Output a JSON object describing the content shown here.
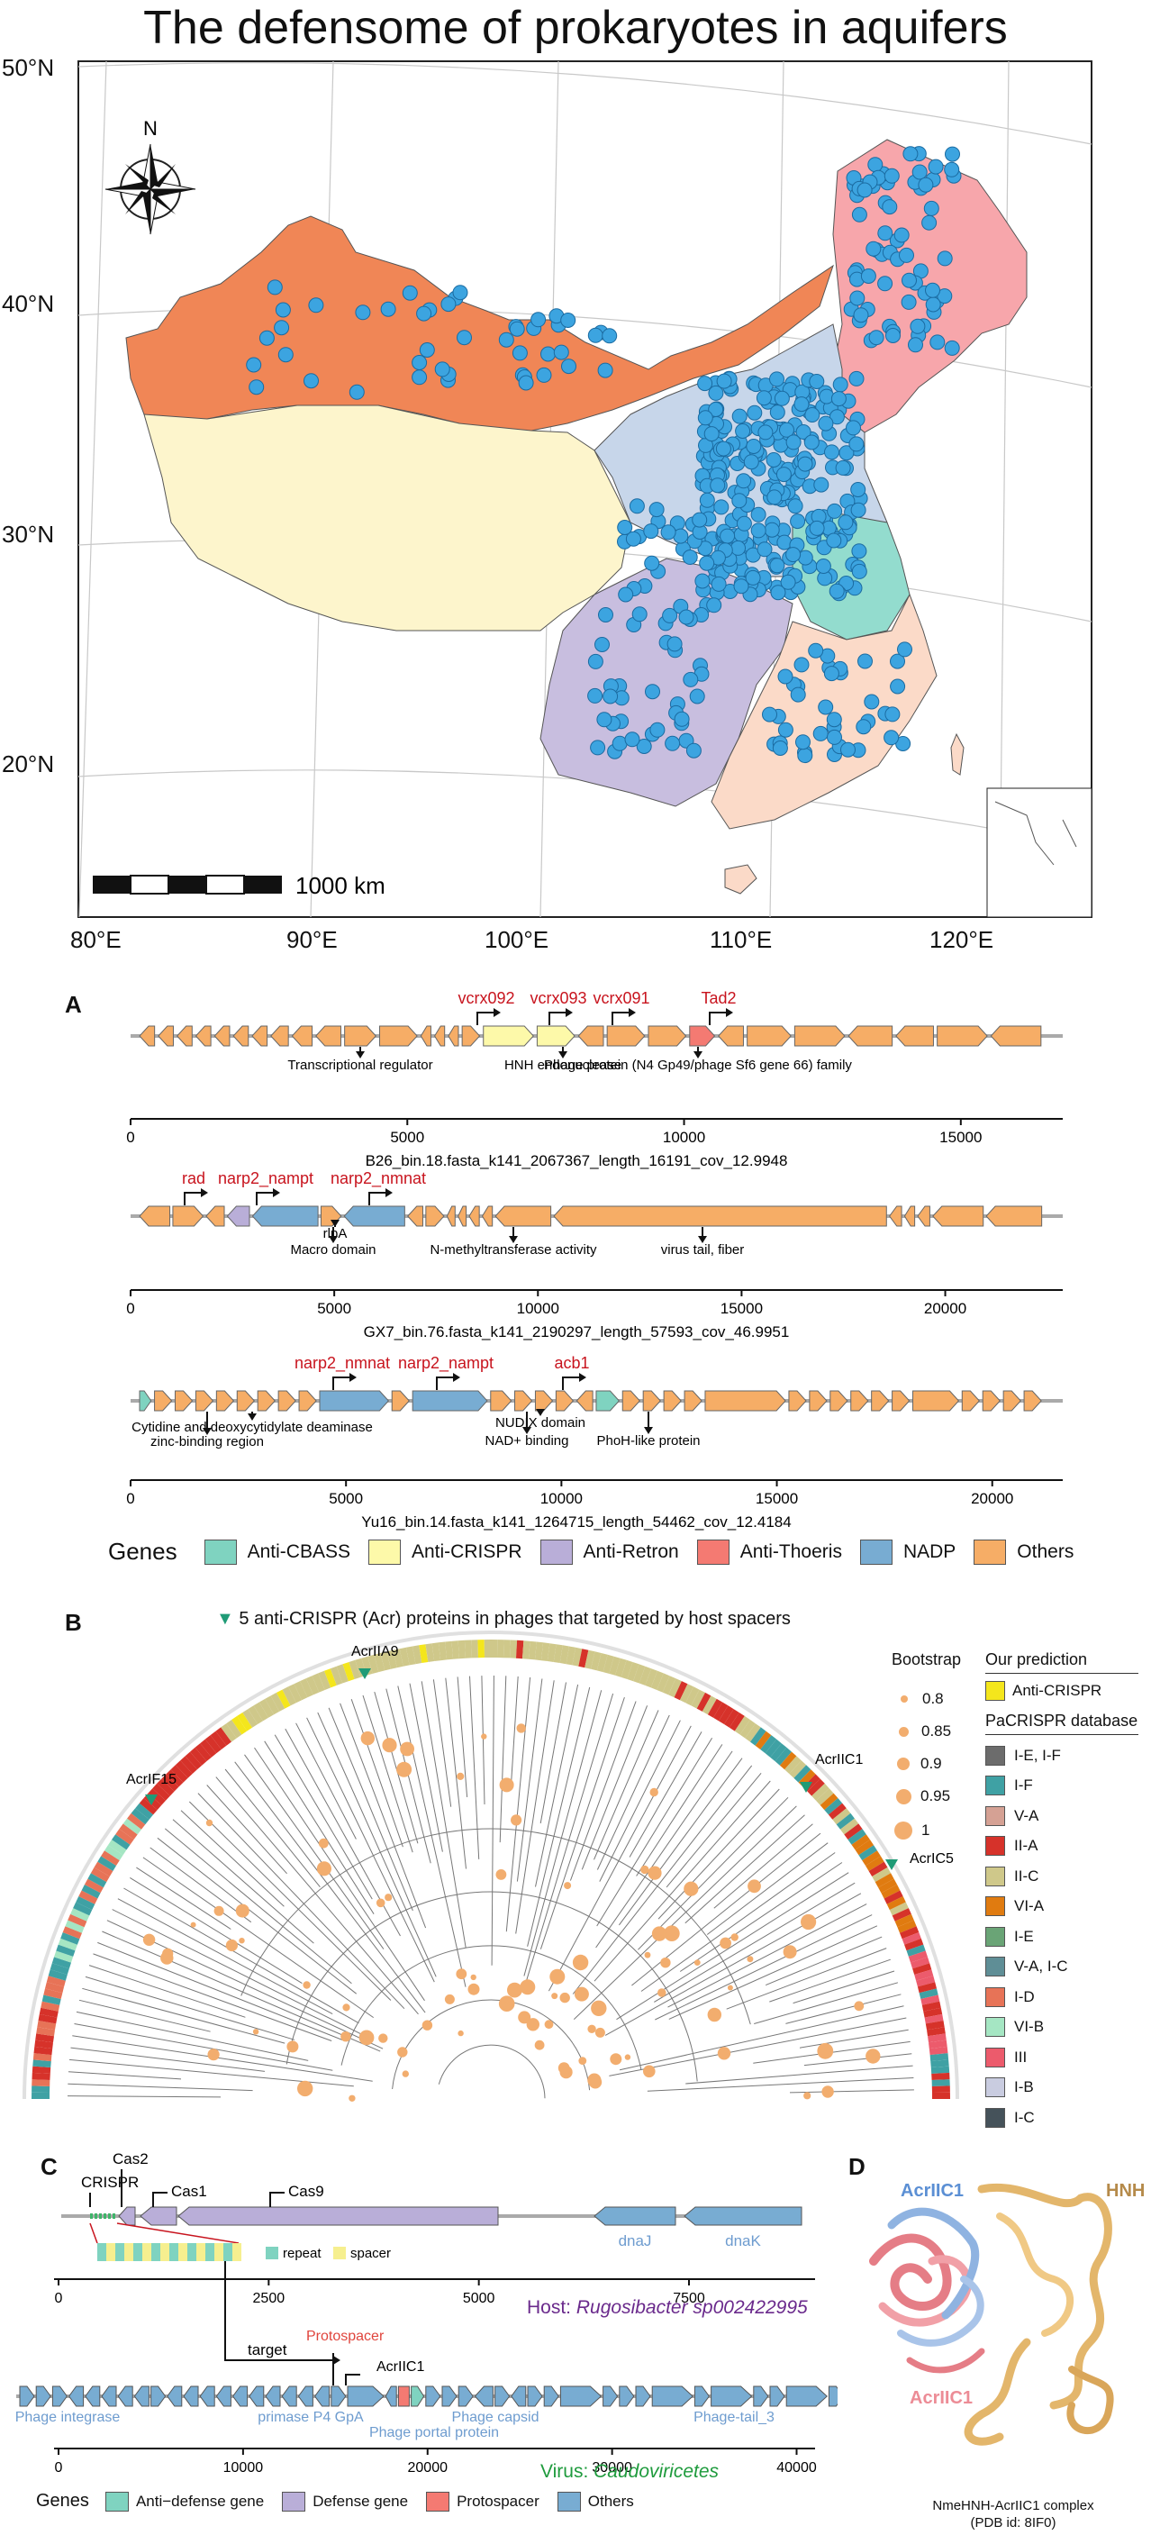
{
  "title": "The defensome of prokaryotes in aquifers",
  "map": {
    "lat_labels": [
      "50°N",
      "40°N",
      "30°N",
      "20°N"
    ],
    "lon_labels": [
      "80°E",
      "90°E",
      "100°E",
      "110°E",
      "120°E"
    ],
    "north_label": "N",
    "scale_label": "1000 km"
  },
  "panelA": {
    "letter": "A",
    "contigs": [
      {
        "name": "B26_bin.18.fasta_k141_2067367_length_16191_cov_12.9948",
        "axis_max": 16191,
        "ticks": [
          0,
          5000,
          10000,
          15000
        ],
        "top_labels": [
          "vcrx092",
          "vcrx093",
          "vcrx091",
          "Tad2"
        ],
        "notes": [
          "Transcriptional regulator",
          "HNH endonuclease",
          "Phage protein (N4 Gp49/phage Sf6 gene 66) family"
        ]
      },
      {
        "name": "GX7_bin.76.fasta_k141_2190297_length_57593_cov_46.9951",
        "axis_max": 22000,
        "ticks": [
          0,
          5000,
          10000,
          15000,
          20000
        ],
        "top_labels": [
          "rad",
          "narp2_nampt",
          "narp2_nmnat"
        ],
        "notes": [
          "rlpA",
          "Macro domain",
          "N-methyltransferase activity",
          "virus tail, fiber"
        ]
      },
      {
        "name": "Yu16_bin.14.fasta_k141_1264715_length_54462_cov_12.4184",
        "axis_max": 20800,
        "ticks": [
          0,
          5000,
          10000,
          15000,
          20000
        ],
        "top_labels": [
          "narp2_nmnat",
          "narp2_nampt",
          "acb1"
        ],
        "notes": [
          "Cytidine and deoxycytidylate deaminase",
          "zinc-binding region",
          "NUDIX domain",
          "NAD+ binding",
          "PhoH-like protein"
        ]
      }
    ],
    "legend": {
      "title": "Genes",
      "items": [
        {
          "label": "Anti-CBASS",
          "color": "#7fd3c0"
        },
        {
          "label": "Anti-CRISPR",
          "color": "#fdf9a9"
        },
        {
          "label": "Anti-Retron",
          "color": "#b9aed8"
        },
        {
          "label": "Anti-Thoeris",
          "color": "#f47a72"
        },
        {
          "label": "NADP",
          "color": "#78acd2"
        },
        {
          "label": "Others",
          "color": "#f6ad66"
        }
      ]
    }
  },
  "panelB": {
    "letter": "B",
    "header": "5 anti-CRISPR (Acr) proteins in phages that targeted by host spacers",
    "acr_labels": [
      "AcrIIA9",
      "AcrIF15",
      "AcrIIC1",
      "AcrIC5"
    ],
    "bootstrap": {
      "title": "Bootstrap",
      "values": [
        "0.8",
        "0.85",
        "0.9",
        "0.95",
        "1"
      ]
    },
    "prediction": {
      "title": "Our prediction",
      "item": "Anti-CRISPR",
      "color": "#f4e61c"
    },
    "database": {
      "title": "PaCRISPR database",
      "items": [
        {
          "label": "I-E, I-F",
          "color": "#6c6c6c"
        },
        {
          "label": "I-F",
          "color": "#3fa1a4"
        },
        {
          "label": "V-A",
          "color": "#d5a194"
        },
        {
          "label": "II-A",
          "color": "#d6322a"
        },
        {
          "label": "II-C",
          "color": "#cfc88a"
        },
        {
          "label": "VI-A",
          "color": "#e07b10"
        },
        {
          "label": "I-E",
          "color": "#6aa476"
        },
        {
          "label": "V-A, I-C",
          "color": "#5f8e96"
        },
        {
          "label": "I-D",
          "color": "#e77357"
        },
        {
          "label": "VI-B",
          "color": "#a5e6c3"
        },
        {
          "label": "III",
          "color": "#ec5b6c"
        },
        {
          "label": "I-B",
          "color": "#c9cce0"
        },
        {
          "label": "I-C",
          "color": "#45525a"
        }
      ]
    }
  },
  "panelC": {
    "letter": "C",
    "host_top_labels": [
      "CRISPR",
      "Cas2",
      "Cas1",
      "Cas9"
    ],
    "host_genes": [
      "dnaJ",
      "dnaK"
    ],
    "inset": {
      "repeat": "repeat",
      "spacer": "spacer"
    },
    "host_ticks": [
      0,
      2500,
      5000,
      7500
    ],
    "host_axis_max": 9000,
    "host_label_prefix": "Host: ",
    "host_name": "Rugosibacter sp002422995",
    "target_label": "target",
    "protospacer_label": "Protospacer",
    "acr_label": "AcrIIC1",
    "virus_genes": [
      "Phage integrase",
      "primase P4 GpA",
      "Phage portal protein",
      "Phage capsid",
      "Phage-tail_3"
    ],
    "virus_ticks": [
      0,
      10000,
      20000,
      30000,
      40000
    ],
    "virus_axis_max": 41000,
    "virus_label_prefix": "Virus: ",
    "virus_name": "Caudoviricetes",
    "legend": {
      "title": "Genes",
      "items": [
        {
          "label": "Anti−defense gene",
          "color": "#7fd3c0"
        },
        {
          "label": "Defense gene",
          "color": "#b9aed8"
        },
        {
          "label": "Protospacer",
          "color": "#f47a72"
        },
        {
          "label": "Others",
          "color": "#78acd2"
        }
      ]
    }
  },
  "panelD": {
    "letter": "D",
    "labels": [
      "AcrIIC1",
      "HNH",
      "AcrIIC1"
    ],
    "caption": [
      "NmeHNH-AcrIIC1 complex",
      "(PDB id: 8IF0)"
    ]
  }
}
